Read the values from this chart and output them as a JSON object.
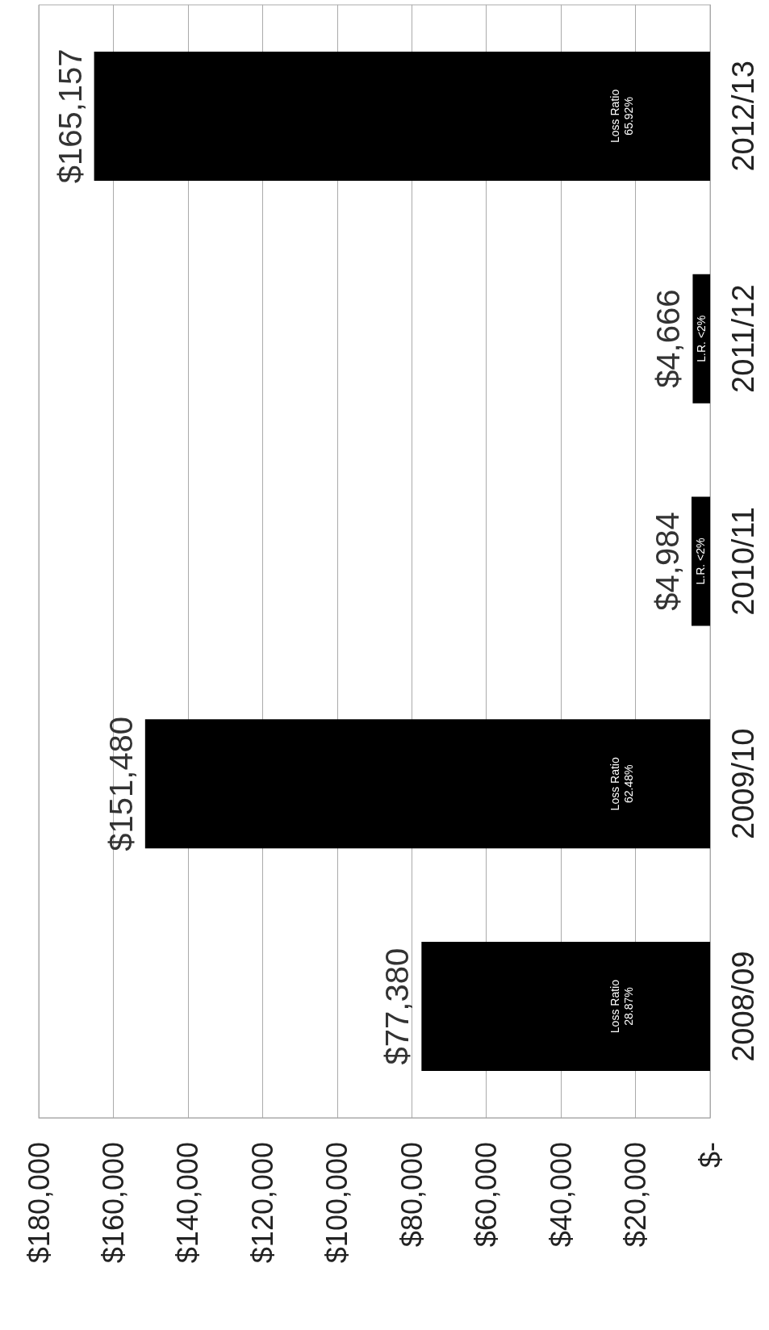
{
  "chart_data": {
    "type": "bar",
    "orientation": "horizontal",
    "categories": [
      "2012/13",
      "2011/12",
      "2010/11",
      "2009/10",
      "2008/09"
    ],
    "values": [
      165157,
      4666,
      4984,
      151480,
      77380
    ],
    "value_labels": [
      "$165,157",
      "$4,666",
      "$4,984",
      "$151,480",
      "$77,380"
    ],
    "color": "#000000",
    "xlim": [
      180000,
      0
    ],
    "xticks": [
      {
        "value": 180000,
        "label": "$180,000"
      },
      {
        "value": 160000,
        "label": "$160,000"
      },
      {
        "value": 140000,
        "label": "$140,000"
      },
      {
        "value": 120000,
        "label": "$120,000"
      },
      {
        "value": 100000,
        "label": "$100,000"
      },
      {
        "value": 80000,
        "label": "$80,000"
      },
      {
        "value": 60000,
        "label": "$60,000"
      },
      {
        "value": 40000,
        "label": "$40,000"
      },
      {
        "value": 20000,
        "label": "$20,000"
      },
      {
        "value": 0,
        "label": "$-"
      }
    ],
    "grid": "x",
    "annotations": [
      "Loss Ratio\n65.92%",
      "L.R. <2%",
      "L.R. <2%",
      "Loss Ratio\n62.48%",
      "Loss Ratio\n28.87%"
    ]
  }
}
